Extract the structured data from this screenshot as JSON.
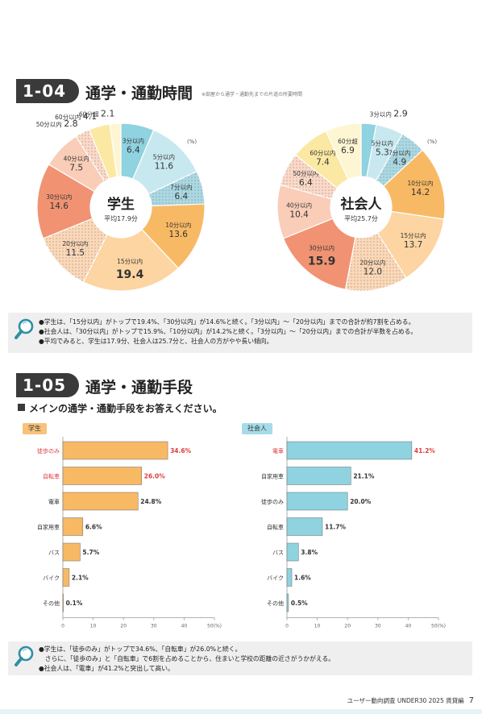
{
  "section_104": {
    "number": "1-04",
    "title": "通学・通勤時間",
    "note": "※部屋から通学・通勤先までの片道の所要時間"
  },
  "section_105": {
    "number": "1-05",
    "title": "通学・通勤手段",
    "question": "メインの通学・通勤手段をお答えください。"
  },
  "chart_data": [
    {
      "type": "pie",
      "title": "学生",
      "center_label": "学生",
      "center_sub": "平均17.9分",
      "unit": "(%)",
      "slices": [
        {
          "label": "3分以内",
          "value": 6.4,
          "value_text": "6.4",
          "color": "#8fd2e0"
        },
        {
          "label": "5分以内",
          "value": 11.6,
          "value_text": "11.6",
          "color": "#c8e8ef"
        },
        {
          "label": "7分以内",
          "value": 6.4,
          "value_text": "6.4",
          "color": "#a9d9e4",
          "dotted": true
        },
        {
          "label": "10分以内",
          "value": 13.6,
          "value_text": "13.6",
          "color": "#f8b965"
        },
        {
          "label": "15分以内",
          "value": 19.4,
          "value_text": "19.4",
          "color": "#fcd5a2"
        },
        {
          "label": "20分以内",
          "value": 11.5,
          "value_text": "11.5",
          "color": "#fbd8b8",
          "dotted": true
        },
        {
          "label": "30分以内",
          "value": 14.6,
          "value_text": "14.6",
          "color": "#f19373"
        },
        {
          "label": "40分以内",
          "value": 7.5,
          "value_text": "7.5",
          "color": "#f9cdb8"
        },
        {
          "label": "50分以内",
          "value": 2.8,
          "value_text": "2.8",
          "color": "#fbd9c9",
          "dotted": true
        },
        {
          "label": "60分以内",
          "value": 4.1,
          "value_text": "4.1",
          "color": "#fbe9a3"
        },
        {
          "label": "60分超",
          "value": 2.1,
          "value_text": "2.1",
          "color": "#fef6d2"
        }
      ]
    },
    {
      "type": "pie",
      "title": "社会人",
      "center_label": "社会人",
      "center_sub": "平均25.7分",
      "unit": "(%)",
      "slices": [
        {
          "label": "3分以内",
          "value": 2.9,
          "value_text": "2.9",
          "color": "#8fd2e0"
        },
        {
          "label": "5分以内",
          "value": 5.3,
          "value_text": "5.3",
          "color": "#c8e8ef"
        },
        {
          "label": "7分以内",
          "value": 4.9,
          "value_text": "4.9",
          "color": "#a9d9e4",
          "dotted": true
        },
        {
          "label": "10分以内",
          "value": 14.2,
          "value_text": "14.2",
          "color": "#f8b965"
        },
        {
          "label": "15分以内",
          "value": 13.7,
          "value_text": "13.7",
          "color": "#fcd5a2"
        },
        {
          "label": "20分以内",
          "value": 12.0,
          "value_text": "12.0",
          "color": "#fbd8b8",
          "dotted": true
        },
        {
          "label": "30分以内",
          "value": 15.9,
          "value_text": "15.9",
          "color": "#f19373"
        },
        {
          "label": "40分以内",
          "value": 10.4,
          "value_text": "10.4",
          "color": "#f9cdb8"
        },
        {
          "label": "50分以内",
          "value": 6.4,
          "value_text": "6.4",
          "color": "#fbd9c9",
          "dotted": true
        },
        {
          "label": "60分以内",
          "value": 7.4,
          "value_text": "7.4",
          "color": "#fbe9a3"
        },
        {
          "label": "60分超",
          "value": 6.9,
          "value_text": "6.9",
          "color": "#fef6d2"
        }
      ]
    },
    {
      "type": "bar",
      "title": "学生",
      "orientation": "horizontal",
      "color": "#f8b965",
      "highlight_color": "#e03c3c",
      "categories": [
        "徒歩のみ",
        "自転車",
        "電車",
        "自家用車",
        "バス",
        "バイク",
        "その他"
      ],
      "values": [
        34.6,
        26.0,
        24.8,
        6.6,
        5.7,
        2.1,
        0.1
      ],
      "value_labels": [
        "34.6%",
        "26.0%",
        "24.8%",
        "6.6%",
        "5.7%",
        "2.1%",
        "0.1%"
      ],
      "highlighted": [
        true,
        true,
        false,
        false,
        false,
        false,
        false
      ],
      "xlim": [
        0,
        50
      ],
      "xticks": [
        "0",
        "10",
        "20",
        "30",
        "40",
        "50(%)"
      ]
    },
    {
      "type": "bar",
      "title": "社会人",
      "orientation": "horizontal",
      "color": "#8fd2e0",
      "highlight_color": "#e03c3c",
      "categories": [
        "電車",
        "自家用車",
        "徒歩のみ",
        "自転車",
        "バス",
        "バイク",
        "その他"
      ],
      "values": [
        41.2,
        21.1,
        20.0,
        11.7,
        3.8,
        1.6,
        0.5
      ],
      "value_labels": [
        "41.2%",
        "21.1%",
        "20.0%",
        "11.7%",
        "3.8%",
        "1.6%",
        "0.5%"
      ],
      "highlighted": [
        true,
        false,
        false,
        false,
        false,
        false,
        false
      ],
      "xlim": [
        0,
        50
      ],
      "xticks": [
        "0",
        "10",
        "20",
        "30",
        "40",
        "50(%)"
      ]
    }
  ],
  "summary_104": {
    "lines": [
      "●学生は、「15分以内」がトップで19.4%、「30分以内」が14.6%と続く。「3分以内」～「20分以内」までの合計が約7割を占める。",
      "●社会人は、「30分以内」がトップで15.9%、「10分以内」が14.2%と続く。「3分以内」～「20分以内」までの合計が半数を占める。",
      "●平均でみると、学生は17.9分、社会人は25.7分と、社会人の方がやや長い傾向。"
    ]
  },
  "summary_105": {
    "lines": [
      "●学生は、「徒歩のみ」がトップで34.6%、「自転車」が26.0%と続く。",
      "　さらに、「徒歩のみ」と「自転車」で6割を占めることから、住まいと学校の距離の近さがうかがえる。",
      "●社会人は、「電車」が41.2%と突出して高い。"
    ]
  },
  "footer": {
    "text": "ユーザー動向調査 UNDER30 2025 賃貸編",
    "page": "7"
  },
  "colors": {
    "dark_badge": "#3a3a3a",
    "student_accent": "#f8b965",
    "worker_accent": "#8fd2e0",
    "highlight_red": "#e03c3c"
  }
}
